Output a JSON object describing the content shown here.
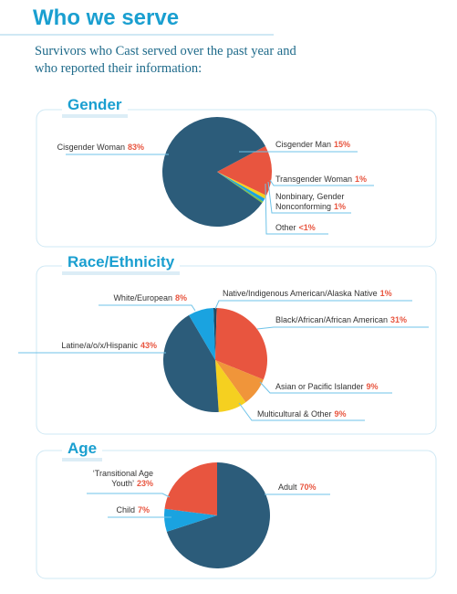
{
  "header": {
    "title": "Who we serve",
    "subtitle": "Survivors who Cast served over the past year and who reported their information:"
  },
  "chart_data": [
    {
      "type": "pie",
      "title": "Gender",
      "categories": [
        "Cisgender Man",
        "Transgender Woman",
        "Nonbinary, Gender Nonconforming",
        "Other",
        "Cisgender Woman"
      ],
      "values": [
        15,
        1,
        1,
        0.5,
        83
      ],
      "value_labels": [
        "15%",
        "1%",
        "1%",
        "<1%",
        "83%"
      ],
      "colors": [
        "#e8553f",
        "#f5d020",
        "#1aa3e0",
        "#7dc242",
        "#2c5c7a"
      ]
    },
    {
      "type": "pie",
      "title": "Race/Ethnicity",
      "categories": [
        "Native/Indigenous American/Alaska Native",
        "Black/African/African American",
        "Asian or Pacific Islander",
        "Multicultural & Other",
        "Latine/a/o/x/Hispanic",
        "White/European"
      ],
      "values": [
        1,
        31,
        9,
        9,
        43,
        8
      ],
      "value_labels": [
        "1%",
        "31%",
        "9%",
        "9%",
        "43%",
        "8%"
      ],
      "colors": [
        "#1f4a63",
        "#e8553f",
        "#f0953a",
        "#f5d020",
        "#2c5c7a",
        "#1aa3e0"
      ]
    },
    {
      "type": "pie",
      "title": "Age",
      "categories": [
        "Adult",
        "Child",
        "‘Transitional Age Youth’"
      ],
      "values": [
        70,
        7,
        23
      ],
      "value_labels": [
        "70%",
        "7%",
        "23%"
      ],
      "colors": [
        "#2c5c7a",
        "#1aa3e0",
        "#e8553f"
      ]
    }
  ]
}
